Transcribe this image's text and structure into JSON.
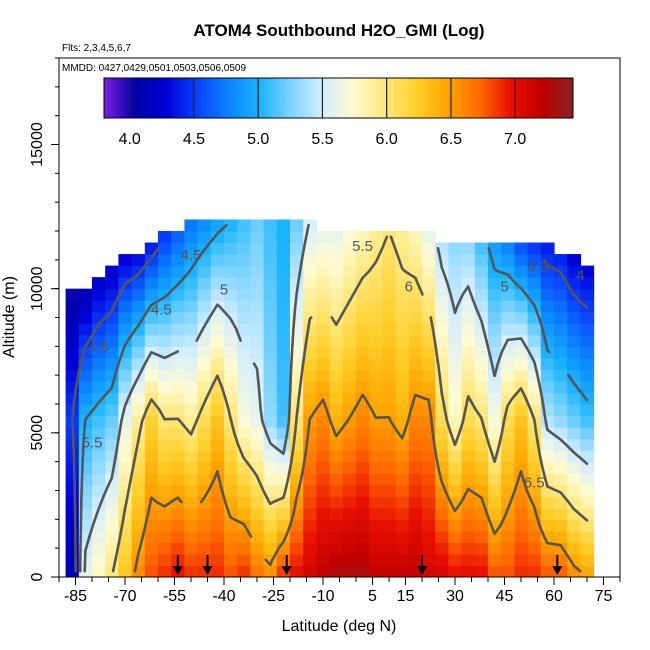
{
  "chart_data": {
    "type": "heatmap",
    "title": "ATOM4 Southbound H2O_GMI (Log)",
    "flights_note": "Flts: 2,3,4,5,6,7",
    "dates_note": "MMDD: 0427,0429,0501,0503,0506,0509",
    "xlabel": "Latitude (deg N)",
    "ylabel": "Altitude (m)",
    "xlim": [
      -90,
      80
    ],
    "ylim": [
      0,
      18000
    ],
    "x_ticks": [
      -85,
      -70,
      -55,
      -40,
      -25,
      -10,
      5,
      15,
      30,
      45,
      60,
      75
    ],
    "x_minor_step": 5,
    "y_ticks": [
      0,
      5000,
      10000,
      15000
    ],
    "y_minor_step": 1000,
    "colorbar": {
      "range": [
        3.8,
        7.45
      ],
      "ticks": [
        4.0,
        4.5,
        5.0,
        5.5,
        6.0,
        6.5,
        7.0
      ],
      "tick_labels": [
        "4.0",
        "4.5",
        "5.0",
        "5.5",
        "6.0",
        "6.5",
        "7.0"
      ],
      "colors": [
        "#7b1fe0",
        "#0000a8",
        "#0000d8",
        "#0a44ff",
        "#0a84ff",
        "#1bb4ff",
        "#7fd4ff",
        "#d4efff",
        "#fffbd0",
        "#ffe77a",
        "#ffcf2a",
        "#ffa400",
        "#ff6a00",
        "#e81000",
        "#c00000",
        "#8c2323"
      ]
    },
    "flight_markers_lat": [
      -54,
      -45,
      -21,
      20,
      61
    ],
    "contour_labels": [
      {
        "text": "4.5",
        "lat": -59,
        "alt": 9100
      },
      {
        "text": "4.5",
        "lat": -50,
        "alt": 11000
      },
      {
        "text": "5",
        "lat": -40,
        "alt": 9800
      },
      {
        "text": "5.5",
        "lat": 2,
        "alt": 11300
      },
      {
        "text": "6",
        "lat": 16,
        "alt": 9900
      },
      {
        "text": "5",
        "lat": 45,
        "alt": 9900
      },
      {
        "text": "4.5",
        "lat": 55,
        "alt": 10600
      },
      {
        "text": "4",
        "lat": 68,
        "alt": 10300
      },
      {
        "text": "5.5",
        "lat": -80,
        "alt": 4500
      },
      {
        "text": "4.5",
        "lat": -78,
        "alt": 7800
      },
      {
        "text": "6.5",
        "lat": 54,
        "alt": 3100
      }
    ],
    "columns": [
      {
        "lat": -86,
        "top": 10000,
        "surface": 4.1,
        "mid": 4.5,
        "upper": 4.0
      },
      {
        "lat": -82,
        "top": 10000,
        "surface": 5.6,
        "mid": 5.0,
        "upper": 4.1
      },
      {
        "lat": -78,
        "top": 10400,
        "surface": 5.8,
        "mid": 5.1,
        "upper": 4.2
      },
      {
        "lat": -74,
        "top": 10800,
        "surface": 6.0,
        "mid": 5.2,
        "upper": 4.2
      },
      {
        "lat": -70,
        "top": 11000,
        "surface": 6.3,
        "mid": 5.6,
        "upper": 4.3
      },
      {
        "lat": -66,
        "top": 11200,
        "surface": 6.6,
        "mid": 5.9,
        "upper": 4.3
      },
      {
        "lat": -62,
        "top": 11400,
        "surface": 6.8,
        "mid": 6.2,
        "upper": 4.4
      },
      {
        "lat": -58,
        "top": 11800,
        "surface": 6.9,
        "mid": 6.0,
        "upper": 4.5
      },
      {
        "lat": -54,
        "top": 12000,
        "surface": 7.0,
        "mid": 6.0,
        "upper": 4.6
      },
      {
        "lat": -50,
        "top": 12400,
        "surface": 6.9,
        "mid": 5.9,
        "upper": 4.7
      },
      {
        "lat": -46,
        "top": 12400,
        "surface": 6.9,
        "mid": 6.1,
        "upper": 4.8
      },
      {
        "lat": -42,
        "top": 12400,
        "surface": 6.9,
        "mid": 6.3,
        "upper": 4.9
      },
      {
        "lat": -38,
        "top": 12400,
        "surface": 6.8,
        "mid": 6.0,
        "upper": 5.0
      },
      {
        "lat": -34,
        "top": 12400,
        "surface": 6.9,
        "mid": 5.7,
        "upper": 5.1
      },
      {
        "lat": -30,
        "top": 12400,
        "surface": 6.7,
        "mid": 5.6,
        "upper": 5.2
      },
      {
        "lat": -26,
        "top": 12400,
        "surface": 6.6,
        "mid": 5.3,
        "upper": 5.1
      },
      {
        "lat": -22,
        "top": 12400,
        "surface": 6.9,
        "mid": 5.1,
        "upper": 5.0
      },
      {
        "lat": -18,
        "top": 12400,
        "surface": 7.0,
        "mid": 6.0,
        "upper": 5.2
      },
      {
        "lat": -14,
        "top": 12400,
        "surface": 7.1,
        "mid": 6.5,
        "upper": 5.5
      },
      {
        "lat": -10,
        "top": 12000,
        "surface": 7.2,
        "mid": 6.6,
        "upper": 5.6
      },
      {
        "lat": -6,
        "top": 12000,
        "surface": 7.3,
        "mid": 6.4,
        "upper": 5.6
      },
      {
        "lat": -2,
        "top": 12000,
        "surface": 7.3,
        "mid": 6.5,
        "upper": 5.7
      },
      {
        "lat": 2,
        "top": 12000,
        "surface": 7.3,
        "mid": 6.6,
        "upper": 5.8
      },
      {
        "lat": 6,
        "top": 12000,
        "surface": 7.2,
        "mid": 6.5,
        "upper": 5.9
      },
      {
        "lat": 10,
        "top": 12000,
        "surface": 7.2,
        "mid": 6.5,
        "upper": 6.0
      },
      {
        "lat": 14,
        "top": 12000,
        "surface": 7.2,
        "mid": 6.4,
        "upper": 5.9
      },
      {
        "lat": 18,
        "top": 12000,
        "surface": 7.2,
        "mid": 6.6,
        "upper": 5.8
      },
      {
        "lat": 22,
        "top": 12000,
        "surface": 7.1,
        "mid": 6.6,
        "upper": 5.6
      },
      {
        "lat": 26,
        "top": 11600,
        "surface": 7.1,
        "mid": 6.1,
        "upper": 5.4
      },
      {
        "lat": 30,
        "top": 11600,
        "surface": 7.0,
        "mid": 5.8,
        "upper": 5.3
      },
      {
        "lat": 34,
        "top": 11600,
        "surface": 7.0,
        "mid": 6.1,
        "upper": 5.3
      },
      {
        "lat": 38,
        "top": 11600,
        "surface": 7.0,
        "mid": 6.0,
        "upper": 5.1
      },
      {
        "lat": 42,
        "top": 11400,
        "surface": 6.8,
        "mid": 5.7,
        "upper": 4.9
      },
      {
        "lat": 46,
        "top": 11400,
        "surface": 6.8,
        "mid": 6.1,
        "upper": 4.8
      },
      {
        "lat": 50,
        "top": 11400,
        "surface": 6.9,
        "mid": 6.3,
        "upper": 4.6
      },
      {
        "lat": 54,
        "top": 11400,
        "surface": 6.9,
        "mid": 6.0,
        "upper": 4.5
      },
      {
        "lat": 58,
        "top": 11400,
        "surface": 6.8,
        "mid": 5.4,
        "upper": 4.4
      },
      {
        "lat": 62,
        "top": 11200,
        "surface": 6.8,
        "mid": 5.3,
        "upper": 4.4
      },
      {
        "lat": 66,
        "top": 11000,
        "surface": 6.6,
        "mid": 5.2,
        "upper": 4.3
      },
      {
        "lat": 70,
        "top": 10600,
        "surface": 6.5,
        "mid": 5.1,
        "upper": 4.3
      }
    ]
  }
}
